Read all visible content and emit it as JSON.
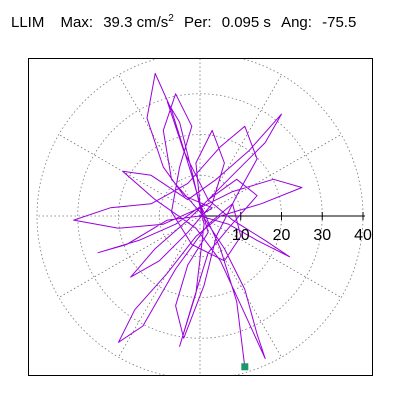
{
  "header": {
    "station": "LLIM",
    "max_label": "Max:",
    "max_value": "39.3",
    "max_unit": "cm/s",
    "max_unit_exp": "2",
    "per_label": "Per:",
    "per_value": "0.095 s",
    "ang_label": "Ang:",
    "ang_value": "-75.5"
  },
  "colors": {
    "trace": "#9900dd",
    "end_marker": "#1a9966",
    "grid": "#777777",
    "axis": "#000000"
  },
  "chart_data": {
    "type": "scatter",
    "plot_style": "polar particle-motion trace",
    "rings": [
      10,
      20,
      30,
      40
    ],
    "tick_labels": [
      "10",
      "20",
      "30",
      "40"
    ],
    "radial_range": [
      0,
      40
    ],
    "spoke_angles_deg": [
      0,
      30,
      60,
      90,
      120,
      150,
      180,
      210,
      240,
      270,
      300,
      330
    ],
    "trace_points": [
      [
        0,
        0
      ],
      [
        3,
        2
      ],
      [
        -4,
        5
      ],
      [
        -9,
        12
      ],
      [
        -13,
        24
      ],
      [
        -11,
        35
      ],
      [
        -7,
        26
      ],
      [
        -2,
        10
      ],
      [
        2,
        -4
      ],
      [
        -3,
        -12
      ],
      [
        -6,
        -22
      ],
      [
        -4,
        -30
      ],
      [
        1,
        -17
      ],
      [
        4,
        -5
      ],
      [
        9,
        5
      ],
      [
        14,
        14
      ],
      [
        11,
        22
      ],
      [
        5,
        17
      ],
      [
        -3,
        8
      ],
      [
        -12,
        3
      ],
      [
        -22,
        2
      ],
      [
        -31,
        -1
      ],
      [
        -20,
        -3
      ],
      [
        -9,
        -2
      ],
      [
        0,
        2
      ],
      [
        8,
        6
      ],
      [
        18,
        9
      ],
      [
        25,
        7
      ],
      [
        15,
        3
      ],
      [
        5,
        0
      ],
      [
        -1,
        -5
      ],
      [
        -8,
        -14
      ],
      [
        -16,
        -23
      ],
      [
        -20,
        -31
      ],
      [
        -14,
        -27
      ],
      [
        -6,
        -13
      ],
      [
        2,
        -2
      ],
      [
        8,
        3
      ],
      [
        10,
        -5
      ],
      [
        6,
        -11
      ],
      [
        -2,
        -7
      ],
      [
        -7,
        1
      ],
      [
        -5,
        12
      ],
      [
        -2,
        22
      ],
      [
        -6,
        30
      ],
      [
        -9,
        21
      ],
      [
        -7,
        9
      ],
      [
        0,
        1
      ],
      [
        6,
        -8
      ],
      [
        11,
        -18
      ],
      [
        14,
        -29
      ],
      [
        16,
        -35
      ],
      [
        11,
        -24
      ],
      [
        5,
        -11
      ],
      [
        -1,
        -3
      ],
      [
        -11,
        4
      ],
      [
        -19,
        11
      ],
      [
        -12,
        10
      ],
      [
        -3,
        4
      ],
      [
        4,
        9
      ],
      [
        12,
        16
      ],
      [
        20,
        25
      ],
      [
        16,
        18
      ],
      [
        7,
        9
      ],
      [
        1,
        3
      ],
      [
        -6,
        -2
      ],
      [
        -15,
        -6
      ],
      [
        -25,
        -9
      ],
      [
        -18,
        -7
      ],
      [
        -8,
        -1
      ],
      [
        0,
        0
      ],
      [
        7,
        -2
      ],
      [
        14,
        -6
      ],
      [
        22,
        -10
      ],
      [
        16,
        -6
      ],
      [
        8,
        -1
      ],
      [
        2,
        4
      ],
      [
        -4,
        16
      ],
      [
        -8,
        28
      ],
      [
        -5,
        23
      ],
      [
        -2,
        11
      ],
      [
        1,
        -2
      ],
      [
        -1,
        -19
      ],
      [
        -5,
        -32
      ],
      [
        -2,
        -22
      ],
      [
        2,
        -9
      ],
      [
        7,
        -3
      ],
      [
        14,
        5
      ],
      [
        9,
        9
      ],
      [
        2,
        4
      ],
      [
        -3,
        -1
      ],
      [
        -11,
        -8
      ],
      [
        -17,
        -15
      ],
      [
        -10,
        -11
      ],
      [
        -3,
        -4
      ],
      [
        3,
        3
      ],
      [
        6,
        13
      ],
      [
        3,
        21
      ],
      [
        -1,
        13
      ],
      [
        0,
        3
      ],
      [
        5,
        -8
      ],
      [
        9,
        -21
      ],
      [
        11,
        -37
      ]
    ],
    "end_point": [
      11,
      -37
    ]
  }
}
